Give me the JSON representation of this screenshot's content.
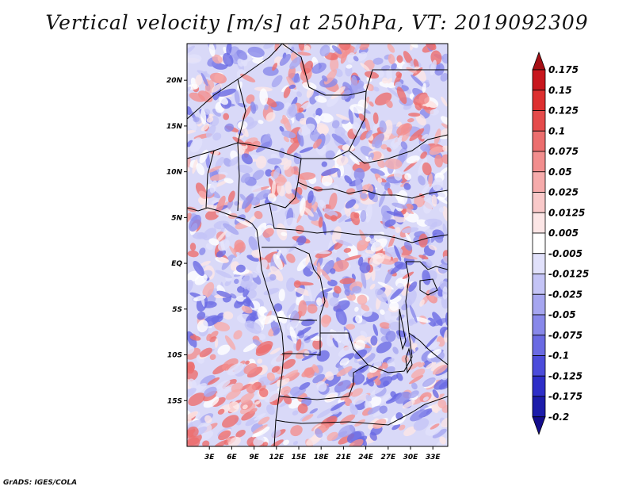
{
  "title": "Vertical velocity [m/s] at 250hPa, VT: 2019092309",
  "footer": "GrADS: IGES/COLA",
  "map": {
    "lon_range": [
      0,
      35
    ],
    "lat_range": [
      -20,
      24
    ],
    "lat_ticks": [
      {
        "value": 20,
        "label": "20N"
      },
      {
        "value": 15,
        "label": "15N"
      },
      {
        "value": 10,
        "label": "10N"
      },
      {
        "value": 5,
        "label": "5N"
      },
      {
        "value": 0,
        "label": "EQ"
      },
      {
        "value": -5,
        "label": "5S"
      },
      {
        "value": -10,
        "label": "10S"
      },
      {
        "value": -15,
        "label": "15S"
      }
    ],
    "lon_ticks": [
      {
        "value": 3,
        "label": "3E"
      },
      {
        "value": 6,
        "label": "6E"
      },
      {
        "value": 9,
        "label": "9E"
      },
      {
        "value": 12,
        "label": "12E"
      },
      {
        "value": 15,
        "label": "15E"
      },
      {
        "value": 18,
        "label": "18E"
      },
      {
        "value": 21,
        "label": "21E"
      },
      {
        "value": 24,
        "label": "24E"
      },
      {
        "value": 27,
        "label": "27E"
      },
      {
        "value": 30,
        "label": "30E"
      },
      {
        "value": 33,
        "label": "33E"
      }
    ]
  },
  "colorbar": {
    "labels": [
      "0.175",
      "0.15",
      "0.125",
      "0.1",
      "0.075",
      "0.05",
      "0.025",
      "0.0125",
      "0.005",
      "-0.005",
      "-0.0125",
      "-0.025",
      "-0.05",
      "-0.075",
      "-0.1",
      "-0.125",
      "-0.175",
      "-0.2"
    ],
    "colors": [
      "#a50f15",
      "#c8161d",
      "#dd2f2f",
      "#e54b4b",
      "#ec6e6e",
      "#f28e8e",
      "#f6abab",
      "#f9c9c9",
      "#fce6e6",
      "#ffffff",
      "#e1e1fb",
      "#c4c4f6",
      "#a6a6f0",
      "#8888ea",
      "#6a6ae3",
      "#4c4cdb",
      "#2e2ec8",
      "#1c1caa",
      "#140d8c"
    ]
  }
}
